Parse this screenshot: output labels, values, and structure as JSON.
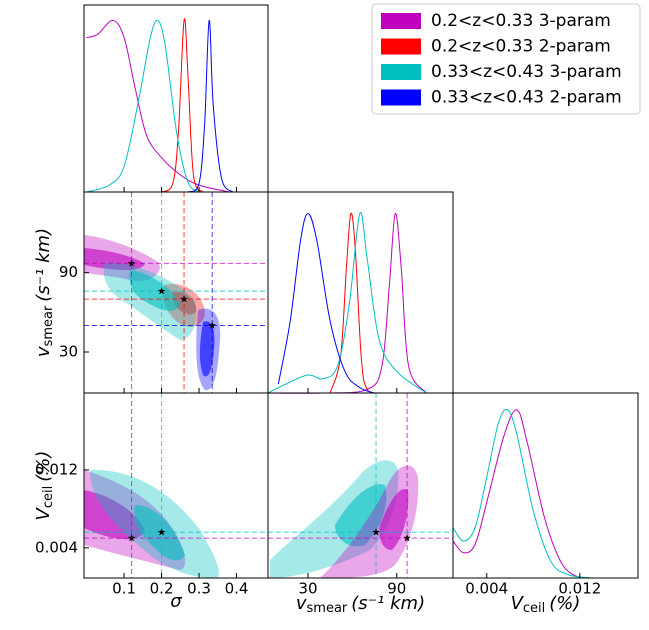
{
  "chart_data": {
    "type": "corner",
    "params": [
      {
        "label": "σ",
        "xlim": [
          -0.007,
          0.484
        ],
        "xticks": [
          0.1,
          0.2,
          0.3,
          0.4
        ],
        "marginal_ylim": [
          0,
          1.09
        ]
      },
      {
        "label": "v",
        "label_sub": "smear",
        "label_unit": "(s⁻¹ km)",
        "xlim": [
          3,
          128
        ],
        "ylim": [
          -1,
          151
        ],
        "xticks": [
          30,
          90
        ],
        "yticks": [
          30,
          90
        ],
        "marginal_ylim": [
          0,
          1.12
        ]
      },
      {
        "label": "V",
        "label_sub": "ceil",
        "label_unit": "(%)",
        "xlim": [
          0.0011,
          0.017
        ],
        "ylim": [
          0.0009,
          0.0199
        ],
        "xticks": [
          0.004,
          0.012
        ],
        "yticks": [
          0.004,
          0.012
        ],
        "marginal_ylim": [
          0,
          1.1
        ]
      }
    ],
    "series": [
      {
        "name": "0.2<z<0.33 3-param",
        "color": "#bf00bf",
        "best_fit": [
          0.12,
          97,
          0.005
        ],
        "marginals": [
          {
            "x": [
              0,
              0.03,
              0.07,
              0.1,
              0.13,
              0.16,
              0.2,
              0.25,
              0.3,
              0.38
            ],
            "values": [
              0.9,
              0.92,
              1,
              0.9,
              0.6,
              0.33,
              0.2,
              0.1,
              0.04,
              0
            ]
          },
          {
            "x": [
              3,
              40,
              70,
              80,
              85,
              89,
              93,
              98,
              110
            ],
            "values": [
              0,
              0,
              0.02,
              0.15,
              0.6,
              1,
              0.7,
              0.15,
              0
            ]
          },
          {
            "x": [
              0.0011,
              0.002,
              0.003,
              0.004,
              0.0055,
              0.0066,
              0.0075,
              0.009,
              0.0105,
              0.012
            ],
            "values": [
              0.22,
              0.15,
              0.2,
              0.45,
              0.85,
              1,
              0.8,
              0.35,
              0.08,
              0
            ]
          }
        ]
      },
      {
        "name": "0.2<z<0.33 2-param",
        "color": "#ff0000",
        "best_fit": [
          0.26,
          70,
          null
        ],
        "marginals": [
          {
            "x": [
              0.2,
              0.23,
              0.245,
              0.26,
              0.27,
              0.285,
              0.31
            ],
            "values": [
              0,
              0.05,
              0.35,
              1,
              0.7,
              0.1,
              0
            ]
          },
          {
            "x": [
              45,
              52,
              56,
              59,
              62,
              66,
              70,
              80
            ],
            "values": [
              0,
              0.2,
              0.7,
              1,
              0.8,
              0.2,
              0.02,
              0
            ]
          },
          null
        ]
      },
      {
        "name": "0.33<z<0.43 3-param",
        "color": "#00bfbf",
        "best_fit": [
          0.2,
          76,
          0.0056
        ],
        "marginals": [
          {
            "x": [
              0,
              0.06,
              0.1,
              0.14,
              0.17,
              0.19,
              0.21,
              0.24,
              0.27,
              0.3
            ],
            "values": [
              0,
              0.04,
              0.15,
              0.55,
              0.9,
              1,
              0.85,
              0.35,
              0.06,
              0
            ]
          },
          {
            "x": [
              3,
              15,
              30,
              40,
              50,
              58,
              65,
              70,
              78,
              90,
              110
            ],
            "values": [
              0,
              0.05,
              0.1,
              0.08,
              0.15,
              0.5,
              1,
              0.75,
              0.3,
              0.12,
              0
            ]
          },
          {
            "x": [
              0.0011,
              0.002,
              0.003,
              0.004,
              0.005,
              0.0058,
              0.0066,
              0.008,
              0.0095,
              0.011,
              0.013
            ],
            "values": [
              0.3,
              0.22,
              0.3,
              0.6,
              0.92,
              1,
              0.85,
              0.4,
              0.1,
              0.02,
              0
            ]
          }
        ]
      },
      {
        "name": "0.33<z<0.43 2-param",
        "color": "#0000ff",
        "best_fit": [
          0.335,
          50,
          null
        ],
        "marginals": [
          {
            "x": [
              0.27,
              0.3,
              0.315,
              0.327,
              0.338,
              0.36,
              0.39
            ],
            "values": [
              0,
              0.05,
              0.4,
              1,
              0.5,
              0.08,
              0
            ]
          },
          {
            "x": [
              10,
              18,
              25,
              30,
              36,
              45,
              55,
              65,
              75
            ],
            "values": [
              0.05,
              0.4,
              0.85,
              1,
              0.85,
              0.4,
              0.12,
              0.03,
              0
            ]
          },
          null
        ]
      }
    ]
  }
}
